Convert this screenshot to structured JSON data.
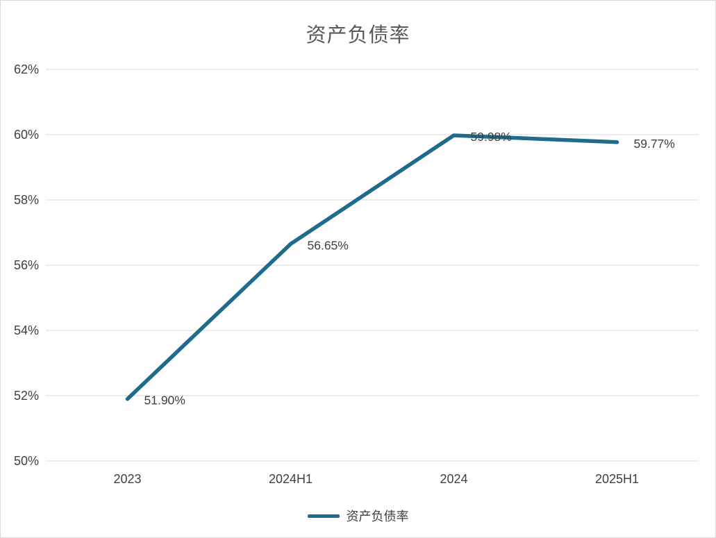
{
  "title": "资产负债率",
  "legend": {
    "label": "资产负债率"
  },
  "colors": {
    "line": "#1E6B8C",
    "grid": "#D9D9D9",
    "tick_text": "#404040",
    "label_text": "#404040",
    "title_text": "#595959"
  },
  "chart_data": {
    "type": "line",
    "title": "资产负债率",
    "categories": [
      "2023",
      "2024H1",
      "2024",
      "2025H1"
    ],
    "series": [
      {
        "name": "资产负债率",
        "values": [
          51.9,
          56.65,
          59.98,
          59.77
        ]
      }
    ],
    "data_labels": [
      "51.90%",
      "56.65%",
      "59.98%",
      "59.77%"
    ],
    "y_ticks": [
      50,
      52,
      54,
      56,
      58,
      60,
      62
    ],
    "y_tick_labels": [
      "50%",
      "52%",
      "54%",
      "56%",
      "58%",
      "60%",
      "62%"
    ],
    "ylim": [
      50,
      62
    ],
    "xlabel": "",
    "ylabel": "",
    "grid": true,
    "legend_position": "bottom"
  }
}
